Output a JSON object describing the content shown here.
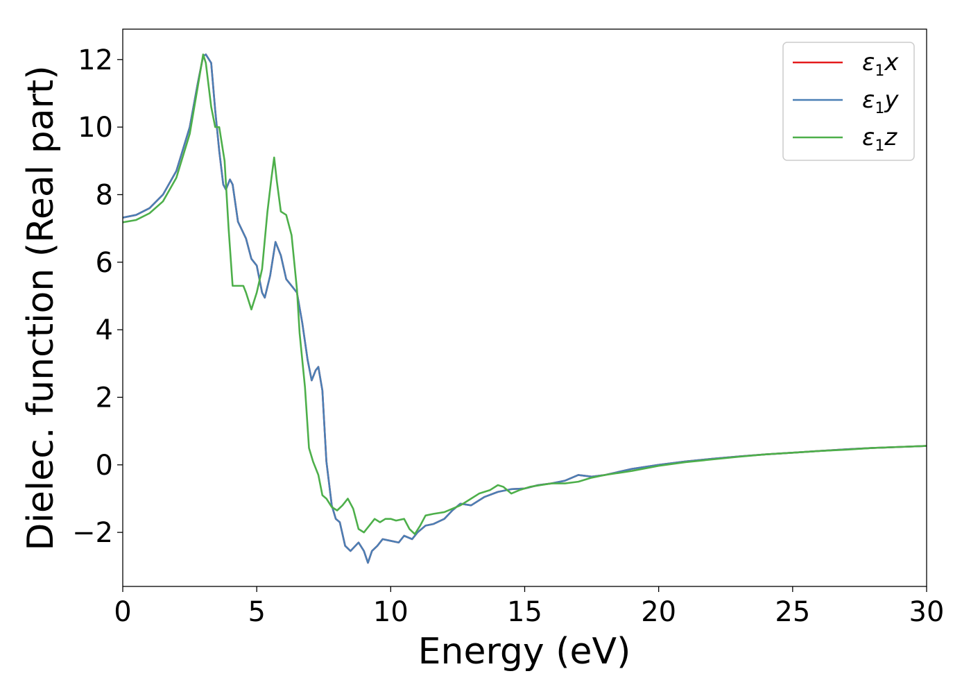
{
  "chart_data": {
    "type": "line",
    "xlabel": "Energy (eV)",
    "ylabel": "Dielec. function (Real part)",
    "xlim": [
      0,
      30
    ],
    "ylim": [
      -3.6,
      12.9
    ],
    "xticks": [
      0,
      5,
      10,
      15,
      20,
      25,
      30
    ],
    "xtick_labels": [
      "0",
      "5",
      "10",
      "15",
      "20",
      "25",
      "30"
    ],
    "yticks": [
      -2,
      0,
      2,
      4,
      6,
      8,
      10,
      12
    ],
    "ytick_labels": [
      "−2",
      "0",
      "2",
      "4",
      "6",
      "8",
      "10",
      "12"
    ],
    "grid": false,
    "legend_position": "top-right",
    "series": [
      {
        "name": "ε",
        "sub": "1",
        "suffix": "x",
        "color": "#e41a1c",
        "points": [
          [
            0,
            7.32
          ],
          [
            0.5,
            7.4
          ],
          [
            1.0,
            7.6
          ],
          [
            1.5,
            8.0
          ],
          [
            2.0,
            8.7
          ],
          [
            2.5,
            10.0
          ],
          [
            2.8,
            11.3
          ],
          [
            3.0,
            12.1
          ],
          [
            3.1,
            12.15
          ],
          [
            3.3,
            11.9
          ],
          [
            3.45,
            10.5
          ],
          [
            3.6,
            9.3
          ],
          [
            3.75,
            8.3
          ],
          [
            3.85,
            8.15
          ],
          [
            4.0,
            8.45
          ],
          [
            4.1,
            8.3
          ],
          [
            4.3,
            7.2
          ],
          [
            4.6,
            6.7
          ],
          [
            4.8,
            6.1
          ],
          [
            5.0,
            5.9
          ],
          [
            5.2,
            5.1
          ],
          [
            5.3,
            4.95
          ],
          [
            5.5,
            5.6
          ],
          [
            5.7,
            6.6
          ],
          [
            5.9,
            6.2
          ],
          [
            6.1,
            5.5
          ],
          [
            6.3,
            5.3
          ],
          [
            6.5,
            5.1
          ],
          [
            6.7,
            4.2
          ],
          [
            6.9,
            3.1
          ],
          [
            7.05,
            2.5
          ],
          [
            7.2,
            2.8
          ],
          [
            7.3,
            2.9
          ],
          [
            7.45,
            2.2
          ],
          [
            7.6,
            0.1
          ],
          [
            7.8,
            -1.2
          ],
          [
            7.95,
            -1.6
          ],
          [
            8.1,
            -1.7
          ],
          [
            8.3,
            -2.4
          ],
          [
            8.5,
            -2.55
          ],
          [
            8.8,
            -2.3
          ],
          [
            9.0,
            -2.55
          ],
          [
            9.15,
            -2.9
          ],
          [
            9.3,
            -2.55
          ],
          [
            9.5,
            -2.4
          ],
          [
            9.7,
            -2.2
          ],
          [
            10.0,
            -2.25
          ],
          [
            10.3,
            -2.3
          ],
          [
            10.5,
            -2.1
          ],
          [
            10.8,
            -2.2
          ],
          [
            11.0,
            -2.0
          ],
          [
            11.3,
            -1.8
          ],
          [
            11.6,
            -1.75
          ],
          [
            12.0,
            -1.6
          ],
          [
            12.3,
            -1.35
          ],
          [
            12.6,
            -1.15
          ],
          [
            13.0,
            -1.2
          ],
          [
            13.5,
            -0.95
          ],
          [
            14.0,
            -0.8
          ],
          [
            14.5,
            -0.72
          ],
          [
            15.0,
            -0.7
          ],
          [
            15.5,
            -0.6
          ],
          [
            16.0,
            -0.55
          ],
          [
            16.5,
            -0.47
          ],
          [
            17.0,
            -0.3
          ],
          [
            17.5,
            -0.35
          ],
          [
            18.0,
            -0.3
          ],
          [
            19.0,
            -0.12
          ],
          [
            20.0,
            0.0
          ],
          [
            21.0,
            0.1
          ],
          [
            22.0,
            0.18
          ],
          [
            23.0,
            0.25
          ],
          [
            24.0,
            0.31
          ],
          [
            25.0,
            0.36
          ],
          [
            26.0,
            0.41
          ],
          [
            27.0,
            0.46
          ],
          [
            28.0,
            0.5
          ],
          [
            29.0,
            0.53
          ],
          [
            30.0,
            0.56
          ]
        ]
      },
      {
        "name": "ε",
        "sub": "1",
        "suffix": "y",
        "color": "#4a7fb5",
        "points": [
          [
            0,
            7.32
          ],
          [
            0.5,
            7.4
          ],
          [
            1.0,
            7.6
          ],
          [
            1.5,
            8.0
          ],
          [
            2.0,
            8.7
          ],
          [
            2.5,
            10.0
          ],
          [
            2.8,
            11.3
          ],
          [
            3.0,
            12.1
          ],
          [
            3.1,
            12.15
          ],
          [
            3.3,
            11.9
          ],
          [
            3.45,
            10.5
          ],
          [
            3.6,
            9.3
          ],
          [
            3.75,
            8.3
          ],
          [
            3.85,
            8.15
          ],
          [
            4.0,
            8.45
          ],
          [
            4.1,
            8.3
          ],
          [
            4.3,
            7.2
          ],
          [
            4.6,
            6.7
          ],
          [
            4.8,
            6.1
          ],
          [
            5.0,
            5.9
          ],
          [
            5.2,
            5.1
          ],
          [
            5.3,
            4.95
          ],
          [
            5.5,
            5.6
          ],
          [
            5.7,
            6.6
          ],
          [
            5.9,
            6.2
          ],
          [
            6.1,
            5.5
          ],
          [
            6.3,
            5.3
          ],
          [
            6.5,
            5.1
          ],
          [
            6.7,
            4.2
          ],
          [
            6.9,
            3.1
          ],
          [
            7.05,
            2.5
          ],
          [
            7.2,
            2.8
          ],
          [
            7.3,
            2.9
          ],
          [
            7.45,
            2.2
          ],
          [
            7.6,
            0.1
          ],
          [
            7.8,
            -1.2
          ],
          [
            7.95,
            -1.6
          ],
          [
            8.1,
            -1.7
          ],
          [
            8.3,
            -2.4
          ],
          [
            8.5,
            -2.55
          ],
          [
            8.8,
            -2.3
          ],
          [
            9.0,
            -2.55
          ],
          [
            9.15,
            -2.9
          ],
          [
            9.3,
            -2.55
          ],
          [
            9.5,
            -2.4
          ],
          [
            9.7,
            -2.2
          ],
          [
            10.0,
            -2.25
          ],
          [
            10.3,
            -2.3
          ],
          [
            10.5,
            -2.1
          ],
          [
            10.8,
            -2.2
          ],
          [
            11.0,
            -2.0
          ],
          [
            11.3,
            -1.8
          ],
          [
            11.6,
            -1.75
          ],
          [
            12.0,
            -1.6
          ],
          [
            12.3,
            -1.35
          ],
          [
            12.6,
            -1.15
          ],
          [
            13.0,
            -1.2
          ],
          [
            13.5,
            -0.95
          ],
          [
            14.0,
            -0.8
          ],
          [
            14.5,
            -0.72
          ],
          [
            15.0,
            -0.7
          ],
          [
            15.5,
            -0.6
          ],
          [
            16.0,
            -0.55
          ],
          [
            16.5,
            -0.47
          ],
          [
            17.0,
            -0.3
          ],
          [
            17.5,
            -0.35
          ],
          [
            18.0,
            -0.3
          ],
          [
            19.0,
            -0.12
          ],
          [
            20.0,
            0.0
          ],
          [
            21.0,
            0.1
          ],
          [
            22.0,
            0.18
          ],
          [
            23.0,
            0.25
          ],
          [
            24.0,
            0.31
          ],
          [
            25.0,
            0.36
          ],
          [
            26.0,
            0.41
          ],
          [
            27.0,
            0.46
          ],
          [
            28.0,
            0.5
          ],
          [
            29.0,
            0.53
          ],
          [
            30.0,
            0.56
          ]
        ]
      },
      {
        "name": "ε",
        "sub": "1",
        "suffix": "z",
        "color": "#4daf4a",
        "points": [
          [
            0,
            7.18
          ],
          [
            0.5,
            7.25
          ],
          [
            1.0,
            7.45
          ],
          [
            1.5,
            7.8
          ],
          [
            2.0,
            8.5
          ],
          [
            2.5,
            9.8
          ],
          [
            2.8,
            11.2
          ],
          [
            3.0,
            12.15
          ],
          [
            3.1,
            11.9
          ],
          [
            3.3,
            10.6
          ],
          [
            3.45,
            10.0
          ],
          [
            3.6,
            10.0
          ],
          [
            3.8,
            9.0
          ],
          [
            3.95,
            7.0
          ],
          [
            4.1,
            5.3
          ],
          [
            4.3,
            5.3
          ],
          [
            4.5,
            5.3
          ],
          [
            4.6,
            5.1
          ],
          [
            4.8,
            4.6
          ],
          [
            5.0,
            5.1
          ],
          [
            5.2,
            5.8
          ],
          [
            5.4,
            7.5
          ],
          [
            5.55,
            8.5
          ],
          [
            5.65,
            9.1
          ],
          [
            5.75,
            8.4
          ],
          [
            5.9,
            7.5
          ],
          [
            6.1,
            7.4
          ],
          [
            6.3,
            6.8
          ],
          [
            6.5,
            5.2
          ],
          [
            6.6,
            3.9
          ],
          [
            6.8,
            2.3
          ],
          [
            6.95,
            0.5
          ],
          [
            7.1,
            0.1
          ],
          [
            7.3,
            -0.3
          ],
          [
            7.45,
            -0.9
          ],
          [
            7.6,
            -1.0
          ],
          [
            7.8,
            -1.25
          ],
          [
            8.0,
            -1.35
          ],
          [
            8.2,
            -1.2
          ],
          [
            8.4,
            -1.0
          ],
          [
            8.6,
            -1.3
          ],
          [
            8.8,
            -1.9
          ],
          [
            9.0,
            -2.0
          ],
          [
            9.2,
            -1.8
          ],
          [
            9.4,
            -1.6
          ],
          [
            9.6,
            -1.7
          ],
          [
            9.8,
            -1.6
          ],
          [
            10.0,
            -1.6
          ],
          [
            10.2,
            -1.65
          ],
          [
            10.5,
            -1.6
          ],
          [
            10.7,
            -1.9
          ],
          [
            10.9,
            -2.05
          ],
          [
            11.1,
            -1.8
          ],
          [
            11.3,
            -1.5
          ],
          [
            11.6,
            -1.45
          ],
          [
            12.0,
            -1.4
          ],
          [
            12.3,
            -1.3
          ],
          [
            12.6,
            -1.2
          ],
          [
            13.0,
            -1.0
          ],
          [
            13.3,
            -0.85
          ],
          [
            13.7,
            -0.75
          ],
          [
            14.0,
            -0.6
          ],
          [
            14.2,
            -0.65
          ],
          [
            14.5,
            -0.85
          ],
          [
            14.8,
            -0.75
          ],
          [
            15.2,
            -0.65
          ],
          [
            15.6,
            -0.6
          ],
          [
            16.0,
            -0.55
          ],
          [
            16.5,
            -0.55
          ],
          [
            17.0,
            -0.5
          ],
          [
            17.5,
            -0.38
          ],
          [
            18.0,
            -0.3
          ],
          [
            19.0,
            -0.18
          ],
          [
            20.0,
            -0.03
          ],
          [
            21.0,
            0.08
          ],
          [
            22.0,
            0.16
          ],
          [
            23.0,
            0.24
          ],
          [
            24.0,
            0.31
          ],
          [
            25.0,
            0.36
          ],
          [
            26.0,
            0.41
          ],
          [
            27.0,
            0.45
          ],
          [
            28.0,
            0.5
          ],
          [
            29.0,
            0.53
          ],
          [
            30.0,
            0.56
          ]
        ]
      }
    ]
  }
}
